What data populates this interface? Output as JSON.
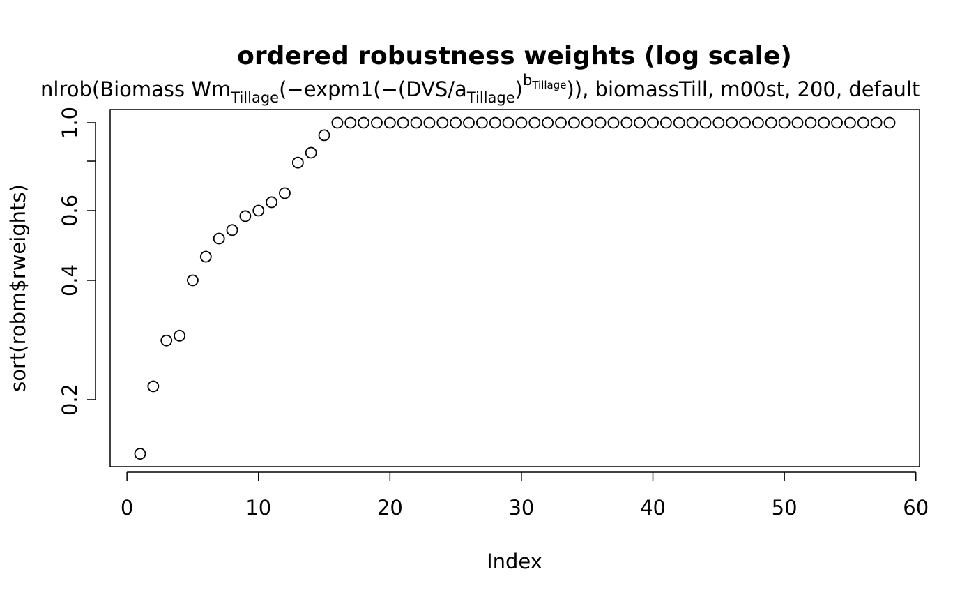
{
  "chart_data": {
    "type": "scatter",
    "title": "ordered robustness weights (log scale)",
    "subtitle": [
      {
        "text": "nlrob(Biomass Wm",
        "shift": "none"
      },
      {
        "text": "Tillage",
        "shift": "sub"
      },
      {
        "text": "(−expm1(−(DVS/a",
        "shift": "none"
      },
      {
        "text": "Tillage",
        "shift": "sub"
      },
      {
        "text": ")",
        "shift": "none"
      },
      {
        "text": "b",
        "shift": "sup"
      },
      {
        "text": "Tillage",
        "shift": "supsub"
      },
      {
        "text": ")), biomassTill, m00st, 200, default",
        "shift": "none"
      }
    ],
    "xlabel": "Index",
    "ylabel": "sort(robm$rweights)",
    "x": [
      1,
      2,
      3,
      4,
      5,
      6,
      7,
      8,
      9,
      10,
      11,
      12,
      13,
      14,
      15,
      16,
      17,
      18,
      19,
      20,
      21,
      22,
      23,
      24,
      25,
      26,
      27,
      28,
      29,
      30,
      31,
      32,
      33,
      34,
      35,
      36,
      37,
      38,
      39,
      40,
      41,
      42,
      43,
      44,
      45,
      46,
      47,
      48,
      49,
      50,
      51,
      52,
      53,
      54,
      55,
      56,
      57,
      58
    ],
    "values": [
      0.146,
      0.216,
      0.282,
      0.29,
      0.4,
      0.459,
      0.51,
      0.536,
      0.581,
      0.6,
      0.63,
      0.664,
      0.793,
      0.84,
      0.93,
      1,
      1,
      1,
      1,
      1,
      1,
      1,
      1,
      1,
      1,
      1,
      1,
      1,
      1,
      1,
      1,
      1,
      1,
      1,
      1,
      1,
      1,
      1,
      1,
      1,
      1,
      1,
      1,
      1,
      1,
      1,
      1,
      1,
      1,
      1,
      1,
      1,
      1,
      1,
      1,
      1,
      1,
      1
    ],
    "color": "#000000",
    "xlim": [
      -1.28,
      60.28
    ],
    "ylim": [
      0.1355,
      1.08
    ],
    "ylog": true,
    "xticks": [
      0,
      10,
      20,
      30,
      40,
      50,
      60
    ],
    "yticks": [
      0.2,
      0.4,
      0.6,
      {
        "value": 0.8,
        "label": null
      },
      {
        "value": 1,
        "label": "1.0"
      }
    ],
    "grid": false
  }
}
